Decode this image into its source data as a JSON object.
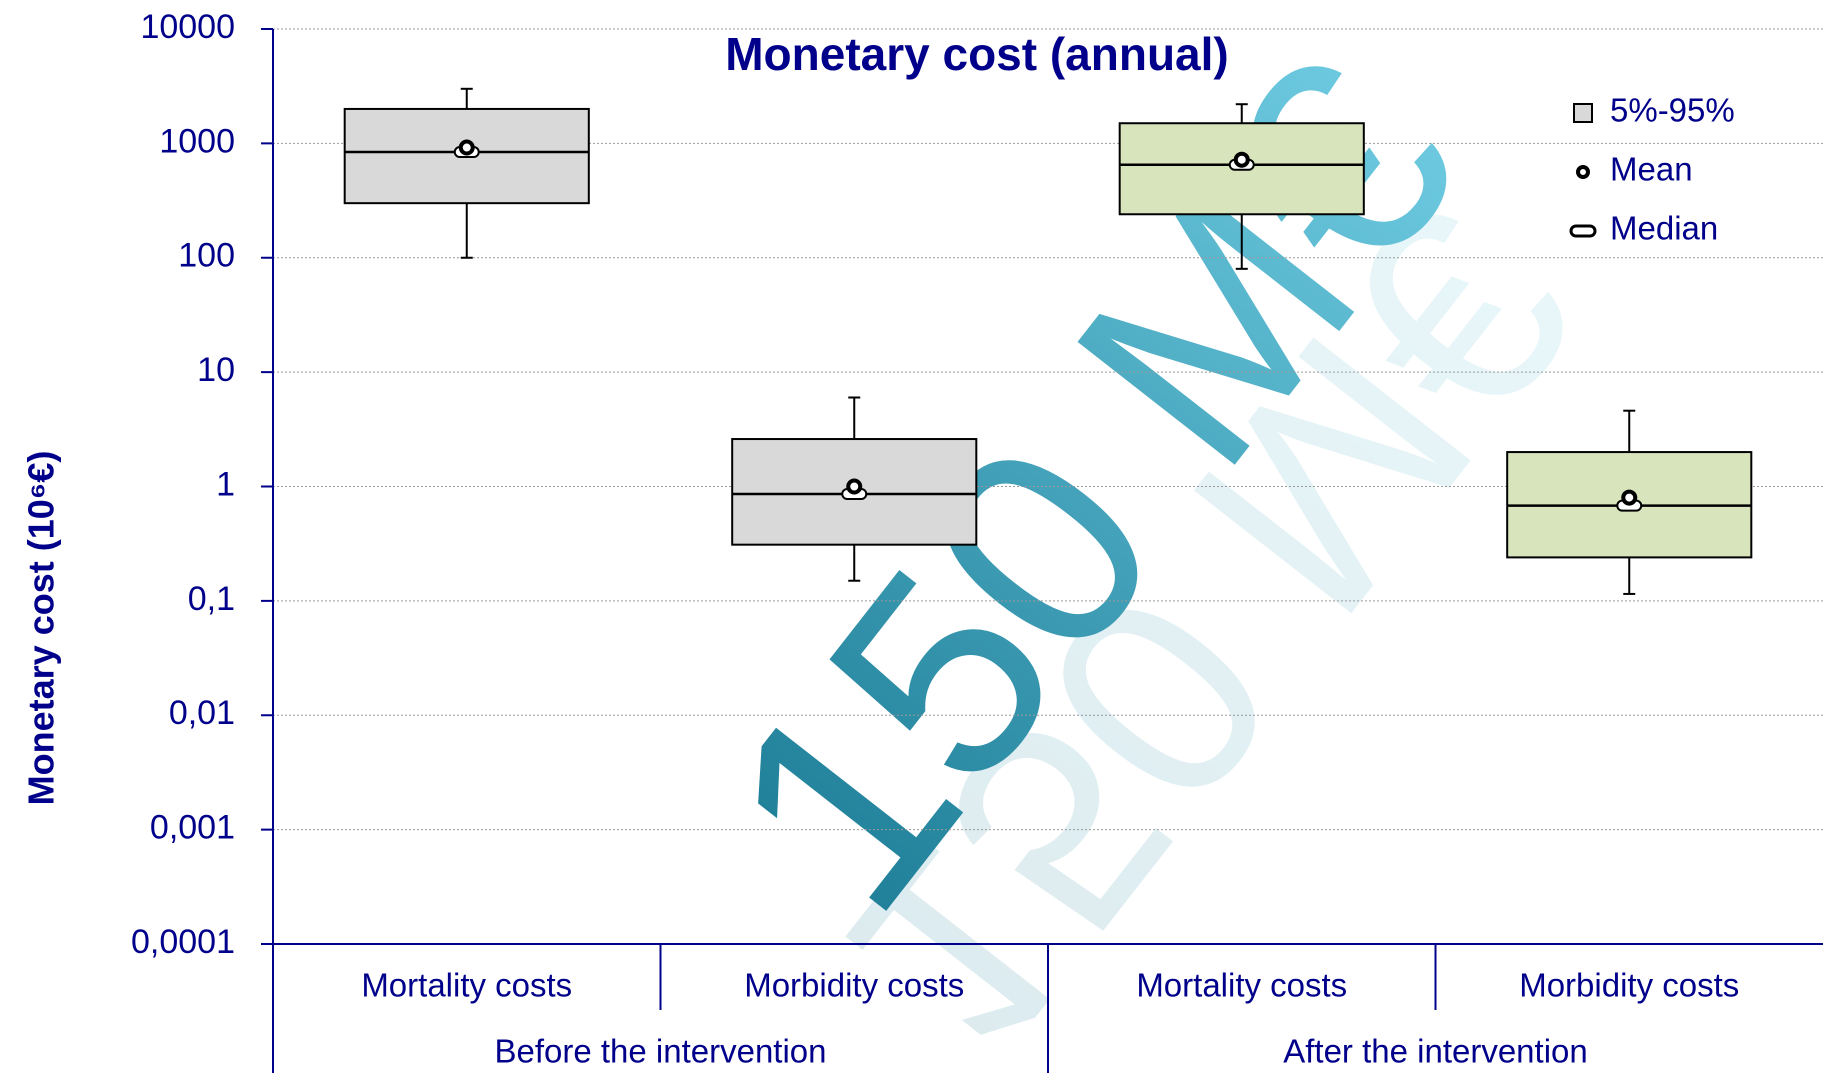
{
  "chart_data": {
    "type": "box",
    "title": "Monetary cost (annual)",
    "ylabel": "Monetary cost (10⁶€)",
    "watermark": "150 M€",
    "log_scale": true,
    "grid": true,
    "ylim": [
      0.0001,
      10000
    ],
    "yticks": [
      {
        "value": 0.0001,
        "label": "0,0001"
      },
      {
        "value": 0.001,
        "label": "0,001"
      },
      {
        "value": 0.01,
        "label": "0,01"
      },
      {
        "value": 0.1,
        "label": "0,1"
      },
      1,
      10,
      100,
      1000,
      10000
    ],
    "legend": {
      "position": "upper right",
      "box": "5%-95%",
      "mean": "Mean",
      "median": "Median"
    },
    "groups": [
      {
        "name": "Before the intervention",
        "color": "#d9d9d9",
        "boxes": [
          {
            "category": "Mortality costs",
            "whislo": 100,
            "q1": 300,
            "med": 840,
            "mean": 920,
            "q3": 2000,
            "whishi": 3000
          },
          {
            "category": "Morbidity costs",
            "whislo": 0.15,
            "q1": 0.31,
            "med": 0.86,
            "mean": 1.0,
            "q3": 2.6,
            "whishi": 6
          }
        ]
      },
      {
        "name": "After the intervention",
        "color": "#d8e4bc",
        "boxes": [
          {
            "category": "Mortality costs",
            "whislo": 80,
            "q1": 240,
            "med": 650,
            "mean": 720,
            "q3": 1500,
            "whishi": 2200
          },
          {
            "category": "Morbidity costs",
            "whislo": 0.115,
            "q1": 0.24,
            "med": 0.68,
            "mean": 0.8,
            "q3": 2,
            "whishi": 4.6
          }
        ]
      }
    ]
  }
}
